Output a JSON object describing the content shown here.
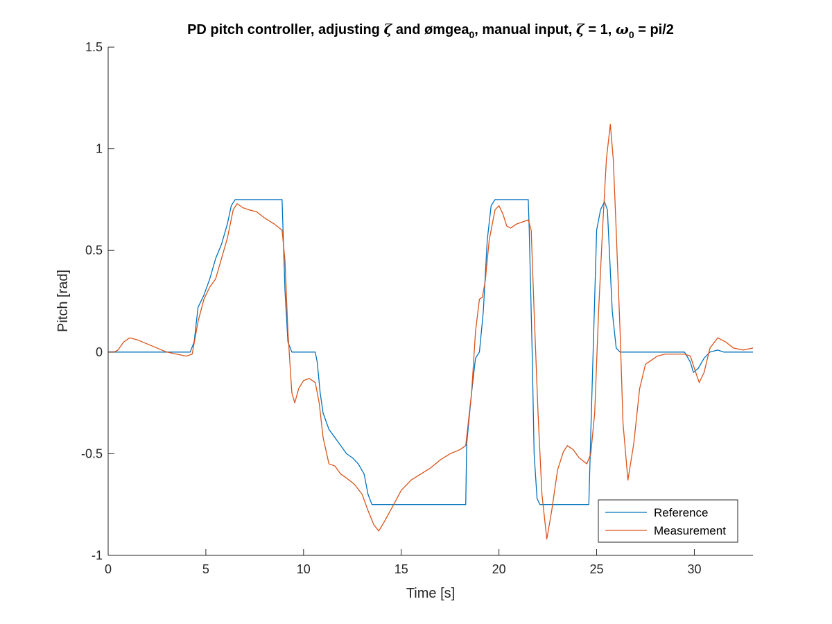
{
  "chart_data": {
    "type": "line",
    "title_parts": {
      "p1": "PD pitch controller, adjusting ",
      "zeta": "ζ",
      "p2": " and ",
      "omegea": "ømgea",
      "sub0": "0",
      "p3": ", manual input, ",
      "zeta2": "ζ",
      "p4": " = 1, ",
      "omega": "ω",
      "sub0b": "0",
      "p5": " = pi/2"
    },
    "xlabel": "Time [s]",
    "ylabel": "Pitch [rad]",
    "xlim": [
      0,
      33
    ],
    "ylim": [
      -1,
      1.5
    ],
    "xticks": [
      0,
      5,
      10,
      15,
      20,
      25,
      30
    ],
    "xtick_labels": [
      "0",
      "5",
      "10",
      "15",
      "20",
      "25",
      "30"
    ],
    "yticks": [
      -1,
      -0.5,
      0,
      0.5,
      1,
      1.5
    ],
    "ytick_labels": [
      "-1",
      "-0.5",
      "0",
      "0.5",
      "1",
      "1.5"
    ],
    "grid": false,
    "legend_position": "bottom-right",
    "series": [
      {
        "name": "Reference",
        "color": "#0072BD",
        "points": [
          [
            0,
            0
          ],
          [
            4.2,
            0
          ],
          [
            4.4,
            0.05
          ],
          [
            4.6,
            0.22
          ],
          [
            4.9,
            0.28
          ],
          [
            5.2,
            0.36
          ],
          [
            5.5,
            0.46
          ],
          [
            5.8,
            0.53
          ],
          [
            6.1,
            0.63
          ],
          [
            6.3,
            0.72
          ],
          [
            6.5,
            0.75
          ],
          [
            8.9,
            0.75
          ],
          [
            8.95,
            0.6
          ],
          [
            9.05,
            0.3
          ],
          [
            9.2,
            0.05
          ],
          [
            9.4,
            0
          ],
          [
            10.6,
            0
          ],
          [
            10.7,
            -0.05
          ],
          [
            10.85,
            -0.2
          ],
          [
            11.0,
            -0.3
          ],
          [
            11.3,
            -0.38
          ],
          [
            11.6,
            -0.42
          ],
          [
            11.9,
            -0.46
          ],
          [
            12.2,
            -0.5
          ],
          [
            12.5,
            -0.52
          ],
          [
            12.8,
            -0.55
          ],
          [
            13.1,
            -0.6
          ],
          [
            13.3,
            -0.7
          ],
          [
            13.5,
            -0.75
          ],
          [
            18.3,
            -0.75
          ],
          [
            18.35,
            -0.45
          ],
          [
            18.6,
            -0.2
          ],
          [
            18.8,
            -0.03
          ],
          [
            19.0,
            0
          ],
          [
            19.2,
            0.2
          ],
          [
            19.4,
            0.55
          ],
          [
            19.6,
            0.72
          ],
          [
            19.8,
            0.75
          ],
          [
            21.5,
            0.75
          ],
          [
            21.55,
            0.6
          ],
          [
            21.7,
            0
          ],
          [
            21.8,
            -0.5
          ],
          [
            21.95,
            -0.72
          ],
          [
            22.1,
            -0.75
          ],
          [
            24.6,
            -0.75
          ],
          [
            24.7,
            -0.4
          ],
          [
            24.85,
            0.1
          ],
          [
            25.0,
            0.6
          ],
          [
            25.2,
            0.7
          ],
          [
            25.4,
            0.74
          ],
          [
            25.55,
            0.7
          ],
          [
            25.65,
            0.5
          ],
          [
            25.8,
            0.2
          ],
          [
            26.0,
            0.02
          ],
          [
            26.2,
            0
          ],
          [
            29.5,
            0
          ],
          [
            29.8,
            -0.05
          ],
          [
            29.95,
            -0.1
          ],
          [
            30.2,
            -0.08
          ],
          [
            30.5,
            -0.03
          ],
          [
            30.8,
            0
          ],
          [
            31.2,
            0.01
          ],
          [
            31.5,
            0
          ],
          [
            33,
            0
          ]
        ]
      },
      {
        "name": "Measurement",
        "color": "#D95319",
        "points": [
          [
            0,
            0
          ],
          [
            0.3,
            0
          ],
          [
            0.5,
            0.01
          ],
          [
            0.8,
            0.05
          ],
          [
            1.1,
            0.07
          ],
          [
            1.5,
            0.06
          ],
          [
            2,
            0.04
          ],
          [
            2.5,
            0.02
          ],
          [
            3,
            0
          ],
          [
            3.5,
            -0.01
          ],
          [
            4,
            -0.02
          ],
          [
            4.3,
            -0.01
          ],
          [
            4.6,
            0.15
          ],
          [
            4.9,
            0.26
          ],
          [
            5.2,
            0.32
          ],
          [
            5.5,
            0.36
          ],
          [
            5.8,
            0.46
          ],
          [
            6.1,
            0.56
          ],
          [
            6.4,
            0.7
          ],
          [
            6.6,
            0.73
          ],
          [
            6.9,
            0.71
          ],
          [
            7.2,
            0.7
          ],
          [
            7.6,
            0.69
          ],
          [
            8.0,
            0.66
          ],
          [
            8.5,
            0.63
          ],
          [
            8.9,
            0.6
          ],
          [
            9.05,
            0.45
          ],
          [
            9.2,
            0.1
          ],
          [
            9.4,
            -0.2
          ],
          [
            9.55,
            -0.25
          ],
          [
            9.75,
            -0.18
          ],
          [
            10.0,
            -0.14
          ],
          [
            10.3,
            -0.13
          ],
          [
            10.6,
            -0.15
          ],
          [
            10.8,
            -0.25
          ],
          [
            11.0,
            -0.42
          ],
          [
            11.3,
            -0.55
          ],
          [
            11.6,
            -0.56
          ],
          [
            11.9,
            -0.6
          ],
          [
            12.2,
            -0.62
          ],
          [
            12.6,
            -0.65
          ],
          [
            13.0,
            -0.7
          ],
          [
            13.3,
            -0.78
          ],
          [
            13.6,
            -0.85
          ],
          [
            13.85,
            -0.88
          ],
          [
            14.1,
            -0.84
          ],
          [
            14.5,
            -0.77
          ],
          [
            15.0,
            -0.68
          ],
          [
            15.5,
            -0.63
          ],
          [
            16.0,
            -0.6
          ],
          [
            16.5,
            -0.57
          ],
          [
            17.0,
            -0.53
          ],
          [
            17.5,
            -0.5
          ],
          [
            18.0,
            -0.48
          ],
          [
            18.3,
            -0.46
          ],
          [
            18.6,
            -0.2
          ],
          [
            18.8,
            0.1
          ],
          [
            19.0,
            0.26
          ],
          [
            19.15,
            0.27
          ],
          [
            19.3,
            0.35
          ],
          [
            19.5,
            0.55
          ],
          [
            19.8,
            0.7
          ],
          [
            20.0,
            0.72
          ],
          [
            20.2,
            0.68
          ],
          [
            20.4,
            0.62
          ],
          [
            20.6,
            0.61
          ],
          [
            20.9,
            0.63
          ],
          [
            21.2,
            0.64
          ],
          [
            21.5,
            0.65
          ],
          [
            21.65,
            0.6
          ],
          [
            21.8,
            0.2
          ],
          [
            22.0,
            -0.3
          ],
          [
            22.2,
            -0.7
          ],
          [
            22.45,
            -0.92
          ],
          [
            22.7,
            -0.78
          ],
          [
            23.0,
            -0.58
          ],
          [
            23.3,
            -0.49
          ],
          [
            23.5,
            -0.46
          ],
          [
            23.8,
            -0.48
          ],
          [
            24.1,
            -0.52
          ],
          [
            24.5,
            -0.55
          ],
          [
            24.7,
            -0.5
          ],
          [
            24.9,
            -0.3
          ],
          [
            25.1,
            0.2
          ],
          [
            25.3,
            0.6
          ],
          [
            25.5,
            0.95
          ],
          [
            25.7,
            1.12
          ],
          [
            25.85,
            0.95
          ],
          [
            26.0,
            0.6
          ],
          [
            26.2,
            0.1
          ],
          [
            26.35,
            -0.35
          ],
          [
            26.6,
            -0.63
          ],
          [
            26.9,
            -0.45
          ],
          [
            27.2,
            -0.18
          ],
          [
            27.5,
            -0.06
          ],
          [
            27.8,
            -0.04
          ],
          [
            28.1,
            -0.02
          ],
          [
            28.5,
            -0.01
          ],
          [
            29.0,
            -0.01
          ],
          [
            29.5,
            -0.01
          ],
          [
            29.8,
            -0.02
          ],
          [
            30.0,
            -0.08
          ],
          [
            30.25,
            -0.15
          ],
          [
            30.5,
            -0.1
          ],
          [
            30.8,
            0.02
          ],
          [
            31.2,
            0.07
          ],
          [
            31.6,
            0.05
          ],
          [
            32.0,
            0.02
          ],
          [
            32.5,
            0.01
          ],
          [
            33,
            0.02
          ]
        ]
      }
    ]
  }
}
